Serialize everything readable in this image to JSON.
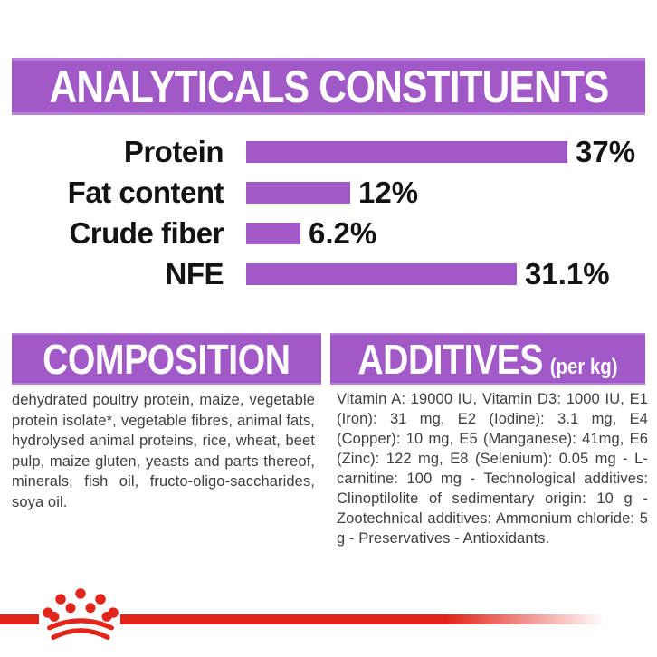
{
  "colors": {
    "purple": "#a159c8",
    "purple_light": "#b87edb",
    "red": "#e1251b",
    "label_text": "#131313",
    "body_text": "#3e3e3e",
    "header_text": "#ffffff",
    "background": "#ffffff"
  },
  "header": {
    "title": "ANALYTICALS CONSTITUENTS"
  },
  "chart_data": {
    "type": "bar",
    "orientation": "horizontal",
    "title": "ANALYTICALS CONSTITUENTS",
    "categories": [
      "Protein",
      "Fat content",
      "Crude fiber",
      "NFE"
    ],
    "values": [
      37,
      12,
      6.2,
      31.1
    ],
    "value_labels": [
      "37%",
      "12%",
      "6.2%",
      "31.1%"
    ],
    "unit": "%",
    "xlim": [
      0,
      38.5
    ],
    "grid": false,
    "legend": false,
    "bar_color": "#a159c8"
  },
  "composition": {
    "title": "COMPOSITION",
    "text": "dehydrated poultry protein, maize, vegetable protein isolate*, vegetable fibres, animal fats, hydrolysed animal proteins, rice, wheat, beet pulp, maize gluten, yeasts and parts thereof, minerals, fish oil, fructo-oligo-saccharides, soya oil."
  },
  "additives": {
    "title": "ADDITIVES",
    "unit": "(per kg)",
    "text": "Vitamin A: 19000 IU, Vitamin D3: 1000 IU, E1 (Iron): 31 mg, E2 (Iodine): 3.1 mg, E4 (Copper): 10 mg, E5 (Manganese): 41mg, E6 (Zinc): 122 mg, E8 (Selenium): 0.05 mg - L- carnitine: 100 mg - Technological additives: Clinoptilolite of sedimentary origin: 10 g -Zootechnical additives: Ammonium chloride: 5 g - Preservatives - Antioxidants."
  },
  "footer": {
    "brand": "royal-canin-crown-logo"
  }
}
